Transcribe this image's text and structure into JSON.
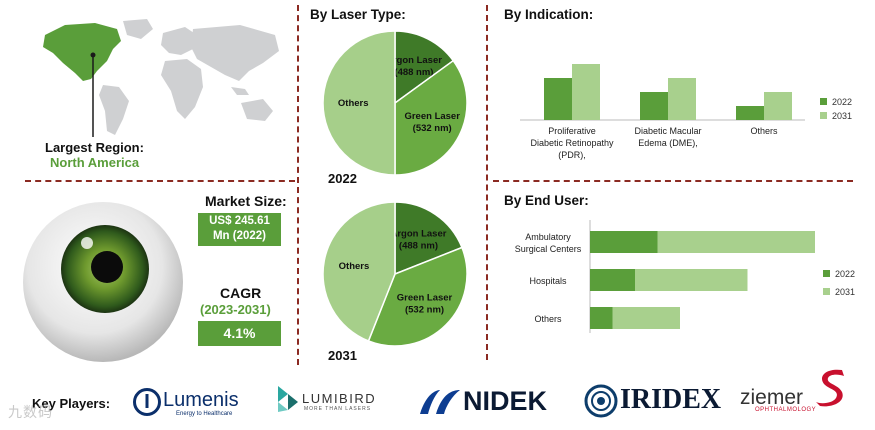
{
  "region": {
    "label": "Largest Region:",
    "value": "North America"
  },
  "market_size": {
    "label": "Market Size:",
    "value_line1": "US$ 245.61",
    "value_line2": "Mn (2022)"
  },
  "cagr": {
    "label": "CAGR",
    "period": "(2023-2031)",
    "value": "4.1%"
  },
  "key_players": {
    "label": "Key Players:",
    "lumenis": "Lumenis",
    "lumenis_sub": "Energy to Healthcare",
    "lumibird": "LUMIBIRD",
    "lumibird_sub": "MORE THAN LASERS",
    "nidek": "NIDEK",
    "iridex": "IRIDEX",
    "ziemer": "ziemer",
    "ziemer_sub": "OPHTHALMOLOGY"
  },
  "watermark": "九数码",
  "colors": {
    "dark_green": "#5a9e3a",
    "light_green": "#a8d08d",
    "pie_dark": "#3f7a28",
    "pie_mid": "#6aab42",
    "pie_light": "#a6cf8a",
    "divider": "#8b2a22"
  },
  "chart_data": [
    {
      "type": "pie",
      "title": "By Laser Type:",
      "year": "2022",
      "slices": [
        {
          "label_line1": "Argon Laser",
          "label_line2": "(488 nm)",
          "value": 15
        },
        {
          "label_line1": "Green Laser",
          "label_line2": "(532 nm)",
          "value": 35
        },
        {
          "label_line1": "Others",
          "label_line2": "",
          "value": 50
        }
      ]
    },
    {
      "type": "pie",
      "title": "",
      "year": "2031",
      "slices": [
        {
          "label_line1": "Argon Laser",
          "label_line2": "(488 nm)",
          "value": 19
        },
        {
          "label_line1": "Green Laser",
          "label_line2": "(532 nm)",
          "value": 37
        },
        {
          "label_line1": "Others",
          "label_line2": "",
          "value": 44
        }
      ]
    },
    {
      "type": "bar",
      "title": "By Indication:",
      "categories": [
        [
          "Proliferative",
          "Diabetic Retinopathy",
          "(PDR),"
        ],
        [
          "Diabetic Macular",
          "Edema (DME),"
        ],
        [
          "Others"
        ]
      ],
      "series": [
        {
          "name": "2022",
          "values": [
            60,
            40,
            20
          ]
        },
        {
          "name": "2031",
          "values": [
            80,
            60,
            40
          ]
        }
      ],
      "ylim": [
        0,
        100
      ]
    },
    {
      "type": "bar",
      "orientation": "horizontal",
      "title": "By End User:",
      "categories": [
        [
          "Ambulatory",
          "Surgical Centers"
        ],
        [
          "Hospitals"
        ],
        [
          "Others"
        ]
      ],
      "series": [
        {
          "name": "2022",
          "values": [
            60,
            40,
            20
          ]
        },
        {
          "name": "2031",
          "values": [
            140,
            100,
            60
          ]
        }
      ],
      "xlim": [
        0,
        160
      ]
    }
  ]
}
